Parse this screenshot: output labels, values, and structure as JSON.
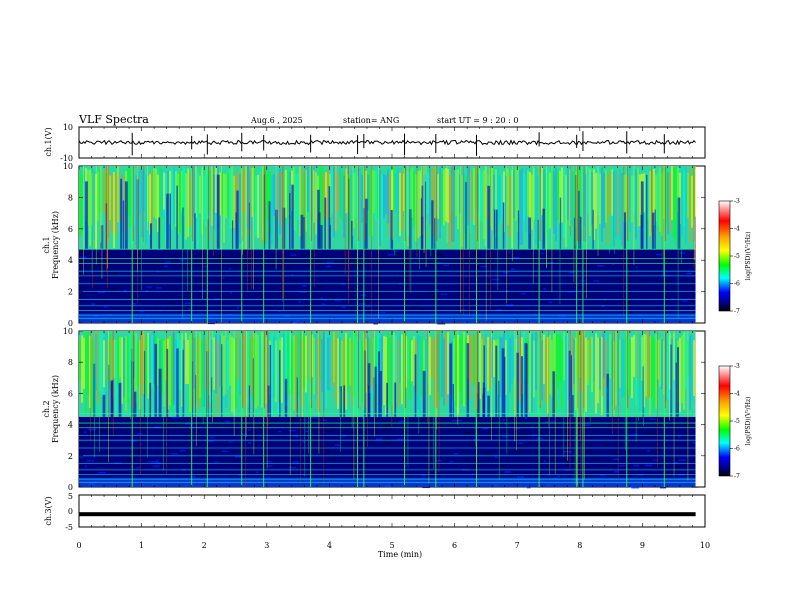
{
  "header": {
    "title": "VLF  Spectra",
    "date": "Aug.6  , 2025",
    "station": "station= ANG",
    "start": "start  UT  =   9 : 20 : 0"
  },
  "panels": {
    "ch1v": {
      "label": "ch.1(V)",
      "yticks": [
        "10",
        "-10"
      ]
    },
    "ch1": {
      "label1": "ch.1",
      "label2": "Frequency  (kHz)",
      "yticks": [
        "10",
        "8",
        "6",
        "4",
        "2",
        "0"
      ]
    },
    "ch2": {
      "label1": "ch.2",
      "label2": "Frequency  (kHz)",
      "yticks": [
        "10",
        "8",
        "6",
        "4",
        "2",
        "0"
      ]
    },
    "ch3v": {
      "label": "ch.3(V)",
      "yticks": [
        "5",
        "0",
        "-5"
      ]
    }
  },
  "colorbar": {
    "label": "log(PSD)(V²/Hz)",
    "ticks": [
      "-3",
      "-4",
      "-5",
      "-6",
      "-7"
    ],
    "colors": [
      "#ff0000",
      "#ffa500",
      "#ffff00",
      "#00ff00",
      "#00ffff",
      "#0000ff",
      "#000080",
      "#000000"
    ]
  },
  "xaxis": {
    "label": "Time  (min)",
    "ticks": [
      "0",
      "1",
      "2",
      "3",
      "4",
      "5",
      "6",
      "7",
      "8",
      "9",
      "10"
    ]
  },
  "chart_data": {
    "type": "heatmap",
    "title": "VLF  Spectra",
    "xlabel": "Time  (min)",
    "xlim": [
      0,
      10
    ],
    "data_end_min": 9.85,
    "panels": [
      {
        "name": "ch.1(V)",
        "kind": "waveform",
        "ylim": [
          -10,
          10
        ],
        "baseline": 0
      },
      {
        "name": "ch.1",
        "kind": "spectrogram",
        "ylabel": "Frequency  (kHz)",
        "ylim": [
          0,
          10
        ],
        "color_range_log_psd": [
          -7,
          -3
        ],
        "cutoff_kHz": 4.7
      },
      {
        "name": "ch.2",
        "kind": "spectrogram",
        "ylabel": "Frequency  (kHz)",
        "ylim": [
          0,
          10
        ],
        "color_range_log_psd": [
          -7,
          -3
        ],
        "cutoff_kHz": 4.5
      },
      {
        "name": "ch.3(V)",
        "kind": "waveform",
        "ylim": [
          -5,
          5
        ],
        "baseline": -1
      }
    ],
    "spectral_lines_kHz": [
      0.3,
      0.5,
      0.8,
      1.1,
      1.5,
      2.0,
      2.5,
      3.0,
      3.3,
      3.8,
      4.1,
      4.7
    ],
    "sferic_times_min": [
      0.85,
      1.8,
      2.05,
      2.6,
      2.95,
      3.7,
      4.45,
      4.55,
      5.2,
      5.7,
      6.35,
      7.35,
      7.95,
      8.05,
      8.75,
      9.35
    ]
  }
}
